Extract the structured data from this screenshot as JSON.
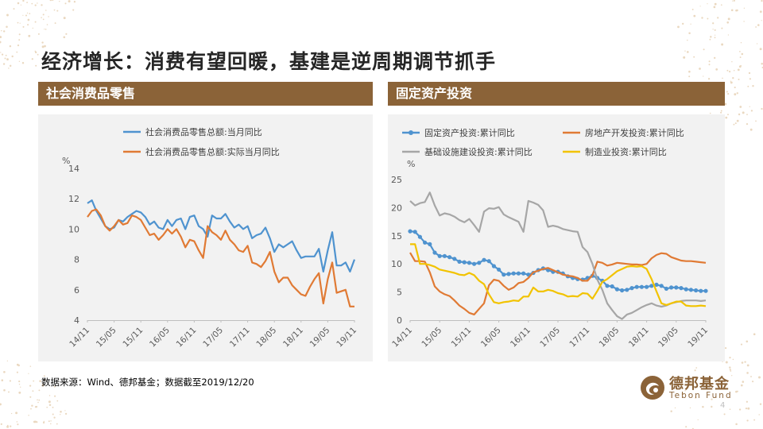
{
  "slide": {
    "title": "经济增长：消费有望回暖，基建是逆周期调节抓手",
    "left_header": "社会消费品零售",
    "right_header": "固定资产投资",
    "source": "数据来源：Wind、德邦基金；数据截至2019/12/20",
    "page_number": "4"
  },
  "logo": {
    "name_cn": "德邦基金",
    "name_en": "Tebon Fund"
  },
  "colors": {
    "accent": "#8b6338",
    "panel_bg": "#f2f2f2",
    "blue": "#4f93cf",
    "orange": "#e07a34",
    "gray": "#a6a6a6",
    "yellow": "#f2c300"
  },
  "chart_data": [
    {
      "type": "line",
      "title": "",
      "ylabel": "%",
      "ylim": [
        4,
        14
      ],
      "yticks": [
        4,
        6,
        8,
        10,
        12,
        14
      ],
      "xticks": [
        "14/11",
        "15/05",
        "15/11",
        "16/05",
        "16/11",
        "17/05",
        "17/11",
        "18/05",
        "18/11",
        "19/05",
        "19/11"
      ],
      "x_start": "14/11",
      "legend_position": "top",
      "series": [
        {
          "name": "社会消费品零售总额:当月同比",
          "color": "#4f93cf",
          "values": [
            11.7,
            11.9,
            11.2,
            10.7,
            10.2,
            10.0,
            10.1,
            10.6,
            10.5,
            10.8,
            11.0,
            11.2,
            11.1,
            10.8,
            10.3,
            10.5,
            10.1,
            10.0,
            10.6,
            10.2,
            10.6,
            10.7,
            10.0,
            10.8,
            10.9,
            10.2,
            10.0,
            9.5,
            10.9,
            10.7,
            10.7,
            11.0,
            10.5,
            10.1,
            10.3,
            10.0,
            10.2,
            9.4,
            9.6,
            9.7,
            10.1,
            9.4,
            8.5,
            9.0,
            8.8,
            9.0,
            9.2,
            8.6,
            8.1,
            8.2,
            8.2,
            8.2,
            8.7,
            7.2,
            8.6,
            9.8,
            7.6,
            7.6,
            7.8,
            7.2,
            8.0
          ]
        },
        {
          "name": "社会消费品零售总额:实际当月同比",
          "color": "#e07a34",
          "values": [
            10.8,
            11.2,
            11.3,
            10.9,
            10.2,
            9.9,
            10.2,
            10.6,
            10.3,
            10.4,
            10.9,
            10.8,
            10.6,
            10.1,
            9.6,
            9.7,
            9.3,
            9.6,
            10.0,
            9.7,
            10.0,
            9.5,
            8.8,
            9.3,
            9.2,
            8.6,
            8.1,
            10.2,
            9.8,
            9.6,
            9.3,
            9.9,
            9.3,
            9.0,
            8.6,
            8.5,
            8.9,
            7.8,
            7.7,
            7.5,
            7.9,
            8.5,
            7.2,
            6.5,
            6.8,
            6.8,
            6.3,
            6.0,
            5.7,
            5.6,
            6.2,
            6.7,
            7.1,
            5.1,
            6.7,
            7.8,
            5.8,
            5.9,
            6.0,
            4.9,
            4.9
          ]
        }
      ]
    },
    {
      "type": "line",
      "title": "",
      "ylabel": "%",
      "ylim": [
        0,
        25
      ],
      "yticks": [
        0,
        5,
        10,
        15,
        20,
        25
      ],
      "xticks": [
        "14/11",
        "15/05",
        "15/11",
        "16/05",
        "16/11",
        "17/05",
        "17/11",
        "18/05",
        "18/11",
        "19/05",
        "19/11"
      ],
      "x_start": "14/11",
      "legend_position": "top",
      "series": [
        {
          "name": "固定资产投资:累计同比",
          "color": "#4f93cf",
          "markers": true,
          "values": [
            15.8,
            15.7,
            14.8,
            13.8,
            13.5,
            12.0,
            11.4,
            11.4,
            11.2,
            10.9,
            10.4,
            10.3,
            10.2,
            10.0,
            10.2,
            10.7,
            10.5,
            9.6,
            9.0,
            8.1,
            8.2,
            8.3,
            8.3,
            8.3,
            8.1,
            8.4,
            8.9,
            9.2,
            8.9,
            8.6,
            8.6,
            8.3,
            7.8,
            7.5,
            7.3,
            7.2,
            7.5,
            7.9,
            7.5,
            7.0,
            6.1,
            6.0,
            5.5,
            5.3,
            5.4,
            5.7,
            5.9,
            5.9,
            5.9,
            6.1,
            6.3,
            6.1,
            5.6,
            5.8,
            5.8,
            5.7,
            5.5,
            5.4,
            5.3,
            5.2,
            5.2
          ]
        },
        {
          "name": "房地产开发投资:累计同比",
          "color": "#e07a34",
          "values": [
            12.0,
            10.5,
            10.5,
            10.4,
            8.5,
            6.0,
            5.1,
            4.6,
            4.3,
            3.5,
            2.6,
            2.0,
            1.3,
            1.0,
            2.0,
            3.0,
            6.2,
            7.2,
            7.0,
            6.1,
            5.4,
            5.8,
            6.6,
            6.8,
            7.5,
            8.5,
            8.8,
            9.1,
            9.3,
            8.9,
            8.5,
            8.1,
            7.9,
            7.8,
            7.5,
            7.0,
            7.0,
            8.0,
            10.4,
            10.2,
            9.7,
            9.9,
            10.2,
            10.1,
            10.0,
            9.9,
            9.9,
            9.8,
            10.0,
            11.0,
            11.6,
            11.9,
            11.8,
            11.2,
            10.9,
            10.6,
            10.5,
            10.5,
            10.4,
            10.3,
            10.2
          ]
        },
        {
          "name": "基础设施建设投资:累计同比",
          "color": "#a6a6a6",
          "values": [
            21.2,
            20.4,
            20.8,
            21.0,
            22.7,
            20.4,
            18.6,
            19.0,
            18.8,
            18.4,
            17.8,
            17.4,
            18.0,
            16.9,
            15.7,
            19.3,
            19.9,
            19.8,
            20.1,
            18.8,
            18.3,
            17.9,
            17.5,
            15.7,
            21.2,
            20.9,
            20.5,
            19.5,
            16.6,
            16.8,
            16.6,
            16.2,
            16.0,
            15.8,
            15.7,
            13.0,
            12.1,
            10.0,
            7.2,
            5.4,
            3.0,
            1.8,
            0.7,
            0.2,
            1.0,
            1.3,
            1.8,
            2.3,
            2.7,
            3.0,
            2.6,
            2.4,
            2.6,
            3.0,
            3.2,
            3.4,
            3.5,
            3.5,
            3.5,
            3.4,
            3.5
          ]
        },
        {
          "name": "制造业投资:累计同比",
          "color": "#f2c300",
          "values": [
            13.5,
            13.5,
            10.0,
            10.0,
            9.8,
            9.5,
            9.0,
            8.8,
            8.6,
            8.4,
            8.1,
            8.0,
            8.4,
            8.0,
            7.0,
            6.4,
            4.6,
            3.2,
            3.0,
            3.2,
            3.3,
            3.5,
            3.4,
            4.2,
            4.2,
            5.8,
            5.1,
            5.1,
            5.4,
            5.2,
            4.8,
            4.6,
            4.2,
            4.3,
            4.2,
            4.8,
            4.7,
            3.8,
            5.2,
            6.8,
            7.3,
            8.0,
            8.7,
            9.1,
            9.5,
            9.6,
            9.5,
            9.6,
            9.1,
            7.3,
            5.1,
            3.0,
            2.7,
            3.0,
            3.3,
            3.3,
            2.6,
            2.5,
            2.5,
            2.6,
            2.5
          ]
        }
      ]
    }
  ]
}
